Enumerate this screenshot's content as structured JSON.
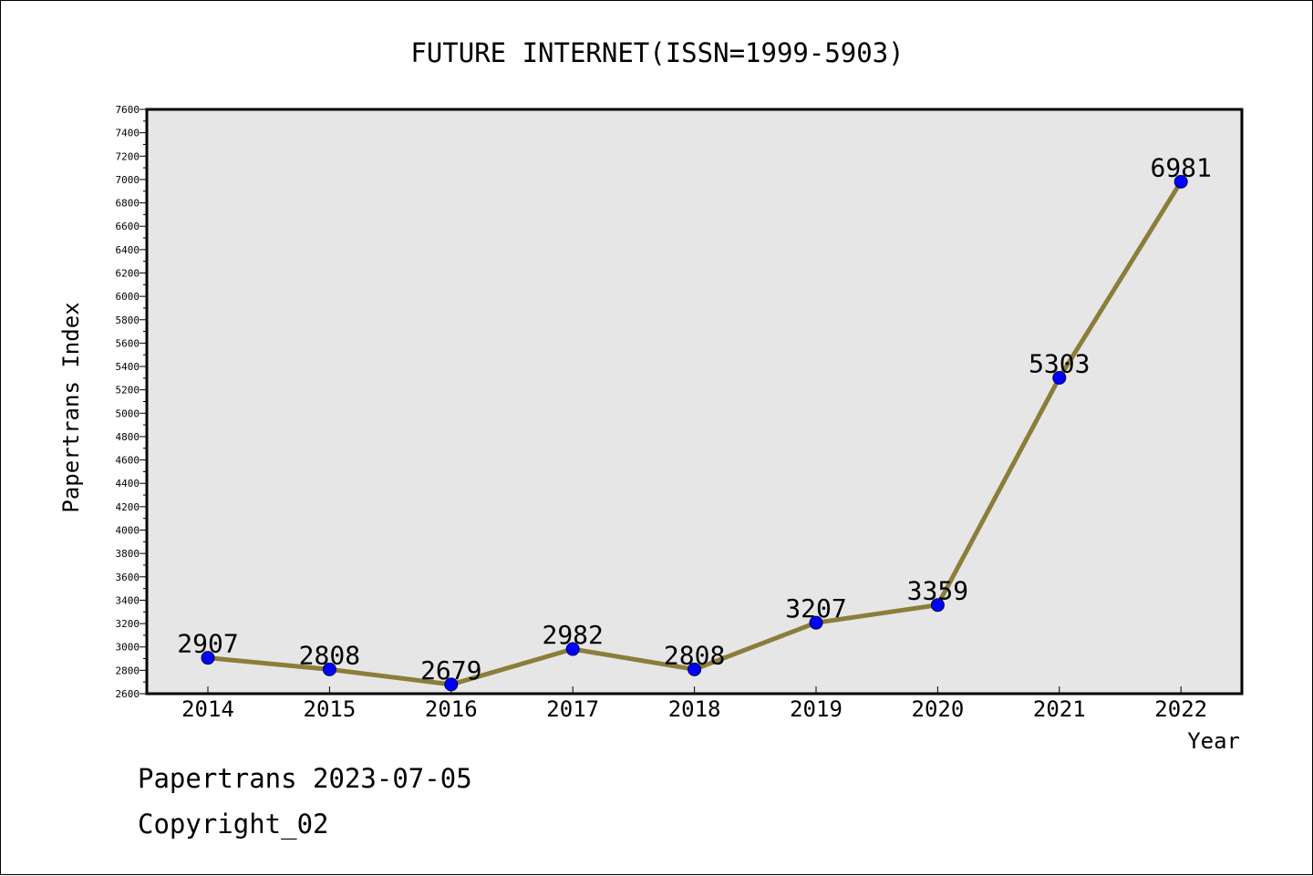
{
  "chart_data": {
    "type": "line",
    "title": "FUTURE INTERNET(ISSN=1999-5903)",
    "xlabel": "Year",
    "ylabel": "Papertrans Index",
    "categories": [
      "2014",
      "2015",
      "2016",
      "2017",
      "2018",
      "2019",
      "2020",
      "2021",
      "2022"
    ],
    "series": [
      {
        "values": [
          2907,
          2808,
          2679,
          2982,
          2808,
          3207,
          3359,
          5303,
          6981
        ]
      }
    ],
    "data_labels": [
      "2907",
      "2808",
      "2679",
      "2982",
      "2808",
      "3207",
      "3359",
      "5303",
      "6981"
    ],
    "ylim": [
      2600,
      7600
    ],
    "yticks": [
      2600,
      2800,
      3000,
      3200,
      3400,
      3600,
      3800,
      4000,
      4200,
      4400,
      4600,
      4800,
      5000,
      5200,
      5400,
      5600,
      5800,
      6000,
      6200,
      6400,
      6600,
      6800,
      7000,
      7200,
      7400,
      7600
    ],
    "grid": false,
    "colors": {
      "line": "#8B7D3A",
      "marker": "#0000FF",
      "plot_background": "#E6E6E6"
    }
  },
  "footer": {
    "line1": "Papertrans 2023-07-05",
    "line2": "Copyright_02"
  }
}
